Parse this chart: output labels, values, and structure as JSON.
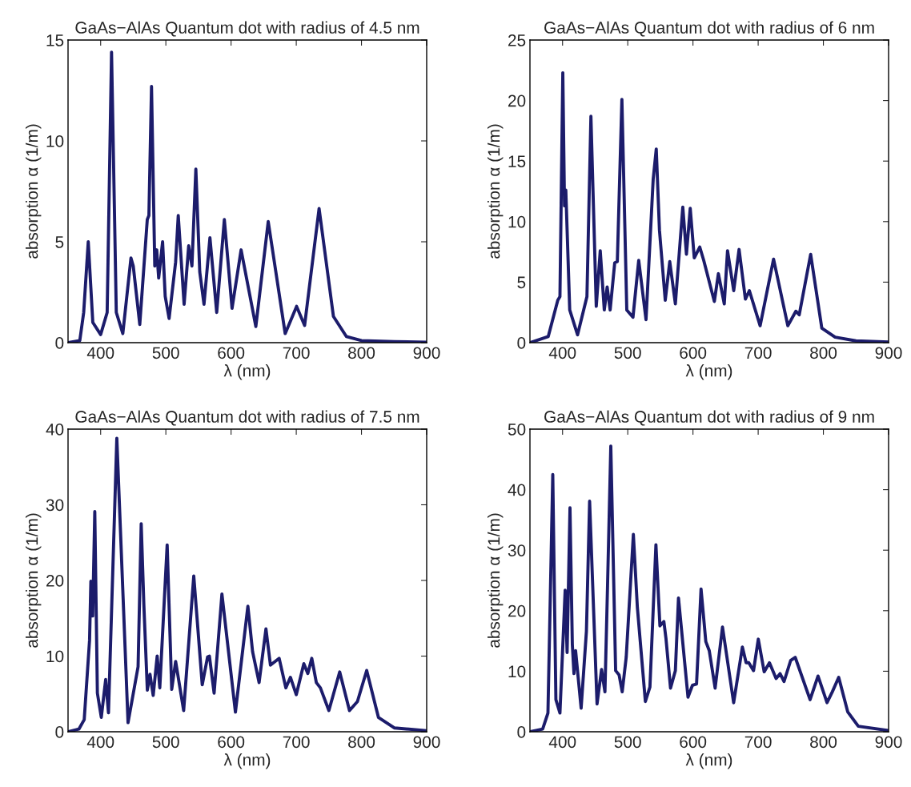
{
  "chart_data": [
    {
      "type": "line",
      "title": "GaAs−AlAs Quantum dot with radius of 4.5 nm",
      "xlabel": "λ (nm)",
      "ylabel": "absorption α (1/m)",
      "xlim": [
        350,
        900
      ],
      "xticks": [
        400,
        500,
        600,
        700,
        800,
        900
      ],
      "ylim": [
        0,
        15
      ],
      "yticks": [
        0,
        5,
        10,
        15
      ],
      "series": [
        {
          "color": "#1c1c6b",
          "x": [
            350,
            368,
            374,
            381,
            388,
            400,
            410,
            416.7,
            424,
            434,
            446.5,
            450,
            460,
            471.5,
            474,
            478,
            483,
            486,
            489,
            495,
            499,
            505,
            515,
            519,
            528,
            535,
            540,
            546,
            552,
            558.5,
            567.6,
            578,
            589.7,
            601.5,
            615.4,
            638,
            657,
            683,
            700.5,
            712.8,
            735,
            757,
            777,
            800,
            850,
            900
          ],
          "values": [
            0,
            0.1,
            1.5,
            5.0,
            1.0,
            0.4,
            1.5,
            14.4,
            1.5,
            0.45,
            4.2,
            3.8,
            0.9,
            6.1,
            6.3,
            12.7,
            3.8,
            4.6,
            3.2,
            5.0,
            2.3,
            1.2,
            4.0,
            6.3,
            1.9,
            4.8,
            3.8,
            8.6,
            3.5,
            1.9,
            5.2,
            1.5,
            6.1,
            1.7,
            4.6,
            0.8,
            6.0,
            0.45,
            1.8,
            0.85,
            6.65,
            1.3,
            0.3,
            0.1,
            0.05,
            0.02
          ]
        }
      ]
    },
    {
      "type": "line",
      "title": "GaAs−AlAs Quantum dot with radius of 6 nm",
      "xlabel": "λ (nm)",
      "ylabel": "absorption α (1/m)",
      "xlim": [
        350,
        900
      ],
      "xticks": [
        400,
        500,
        600,
        700,
        800,
        900
      ],
      "ylim": [
        0,
        25
      ],
      "yticks": [
        0,
        5,
        10,
        15,
        20,
        25
      ],
      "series": [
        {
          "color": "#1c1c6b",
          "x": [
            350,
            378,
            392.7,
            396,
            400.4,
            403,
            405,
            411,
            423,
            437.4,
            443.5,
            451.7,
            457.8,
            464,
            468.4,
            473,
            480,
            484,
            491,
            498.5,
            508,
            516.8,
            528,
            539,
            543.7,
            548.6,
            557.5,
            564.4,
            573,
            584.4,
            590,
            595.8,
            602,
            610.4,
            616.5,
            632.8,
            639,
            648,
            653,
            662.5,
            670.7,
            680.4,
            686.5,
            703,
            723.6,
            745.5,
            757.8,
            763,
            780.5,
            797.6,
            818,
            850,
            900
          ],
          "values": [
            0,
            0.5,
            3.5,
            3.8,
            22.3,
            11.3,
            12.6,
            2.7,
            0.65,
            3.8,
            18.7,
            3.0,
            7.6,
            2.7,
            4.6,
            2.7,
            6.6,
            6.7,
            20.1,
            2.7,
            2.1,
            6.8,
            1.9,
            13.5,
            16.0,
            9.3,
            3.5,
            6.7,
            3.2,
            11.2,
            7.3,
            11.1,
            7.0,
            7.9,
            6.8,
            3.4,
            5.7,
            3.2,
            7.6,
            4.3,
            7.7,
            3.6,
            4.3,
            1.4,
            6.9,
            1.4,
            2.6,
            2.3,
            7.3,
            1.2,
            0.45,
            0.15,
            0.05
          ]
        }
      ]
    },
    {
      "type": "line",
      "title": "GaAs−AlAs Quantum dot with radius of 7.5 nm",
      "xlabel": "λ (nm)",
      "ylabel": "absorption α (1/m)",
      "xlim": [
        350,
        900
      ],
      "xticks": [
        400,
        500,
        600,
        700,
        800,
        900
      ],
      "ylim": [
        0,
        40
      ],
      "yticks": [
        0,
        10,
        20,
        30,
        40
      ],
      "series": [
        {
          "color": "#1c1c6b",
          "x": [
            350,
            366.6,
            374.8,
            383,
            385,
            387.8,
            391,
            395,
            401,
            407.7,
            412,
            424.8,
            442,
            457.4,
            462.2,
            466.3,
            471.6,
            475.7,
            480.6,
            486.7,
            490.7,
            502,
            509,
            515,
            527.3,
            542.8,
            555.8,
            564,
            566.8,
            574,
            586,
            606.7,
            625.8,
            633,
            643,
            653.5,
            660.4,
            673.8,
            684,
            691,
            700,
            711.6,
            717.7,
            723.8,
            730.8,
            737,
            750,
            766.6,
            781.6,
            793.8,
            808,
            826,
            850.8,
            900
          ],
          "values": [
            0,
            0.35,
            1.6,
            12.1,
            19.9,
            15.3,
            29.1,
            5.1,
            1.9,
            6.9,
            2.5,
            38.8,
            1.2,
            8.6,
            27.5,
            16.7,
            5.5,
            7.6,
            4.8,
            10.0,
            5.8,
            24.7,
            5.6,
            9.3,
            2.8,
            20.6,
            6.2,
            9.9,
            10.0,
            5.1,
            18.2,
            2.6,
            16.6,
            10.6,
            6.5,
            13.6,
            8.8,
            9.7,
            5.8,
            7.2,
            4.9,
            9.0,
            7.7,
            9.7,
            6.5,
            5.8,
            2.8,
            7.9,
            2.8,
            4.0,
            8.1,
            1.9,
            0.5,
            0.15
          ]
        }
      ]
    },
    {
      "type": "line",
      "title": "GaAs−AlAs Quantum dot with radius of 9 nm",
      "xlabel": "λ (nm)",
      "ylabel": "absorption α (1/m)",
      "xlim": [
        350,
        900
      ],
      "xticks": [
        400,
        500,
        600,
        700,
        800,
        900
      ],
      "ylim": [
        0,
        50
      ],
      "yticks": [
        0,
        10,
        20,
        30,
        40,
        50
      ],
      "series": [
        {
          "color": "#1c1c6b",
          "x": [
            350,
            369.5,
            377.6,
            385,
            389.8,
            396,
            404,
            407,
            411.4,
            415,
            417.5,
            420,
            428.5,
            436.6,
            441.5,
            452.9,
            459.8,
            465,
            469,
            474,
            481.4,
            486.7,
            491.5,
            497.6,
            508.6,
            514.7,
            527,
            534,
            543.2,
            549.3,
            555.4,
            558.7,
            565.6,
            573,
            577.8,
            592.4,
            599.3,
            605.5,
            612.4,
            619.7,
            625,
            634,
            645.3,
            662.4,
            675.8,
            681.5,
            685.6,
            692.9,
            700.2,
            709.2,
            717.3,
            727.5,
            733.6,
            739.7,
            749.9,
            756.8,
            779.6,
            791.8,
            805.6,
            813.7,
            823.5,
            837.3,
            853.6,
            900
          ],
          "values": [
            0,
            0.45,
            3.1,
            42.5,
            5.3,
            3.1,
            23.4,
            13.1,
            37.0,
            14.4,
            9.6,
            13.4,
            3.9,
            16.6,
            38.1,
            4.6,
            10.3,
            6.6,
            24.1,
            47.2,
            10.1,
            9.4,
            6.6,
            12.3,
            32.6,
            20.6,
            5.0,
            7.4,
            30.9,
            17.5,
            18.2,
            15.3,
            7.2,
            10.1,
            22.1,
            5.7,
            7.7,
            7.9,
            23.6,
            14.9,
            13.4,
            7.2,
            17.3,
            4.8,
            14.0,
            11.4,
            11.4,
            10.1,
            15.3,
            9.9,
            11.4,
            8.8,
            9.6,
            8.3,
            11.8,
            12.3,
            5.3,
            9.2,
            4.8,
            6.6,
            9.0,
            3.3,
            0.9,
            0.2
          ]
        }
      ]
    }
  ]
}
